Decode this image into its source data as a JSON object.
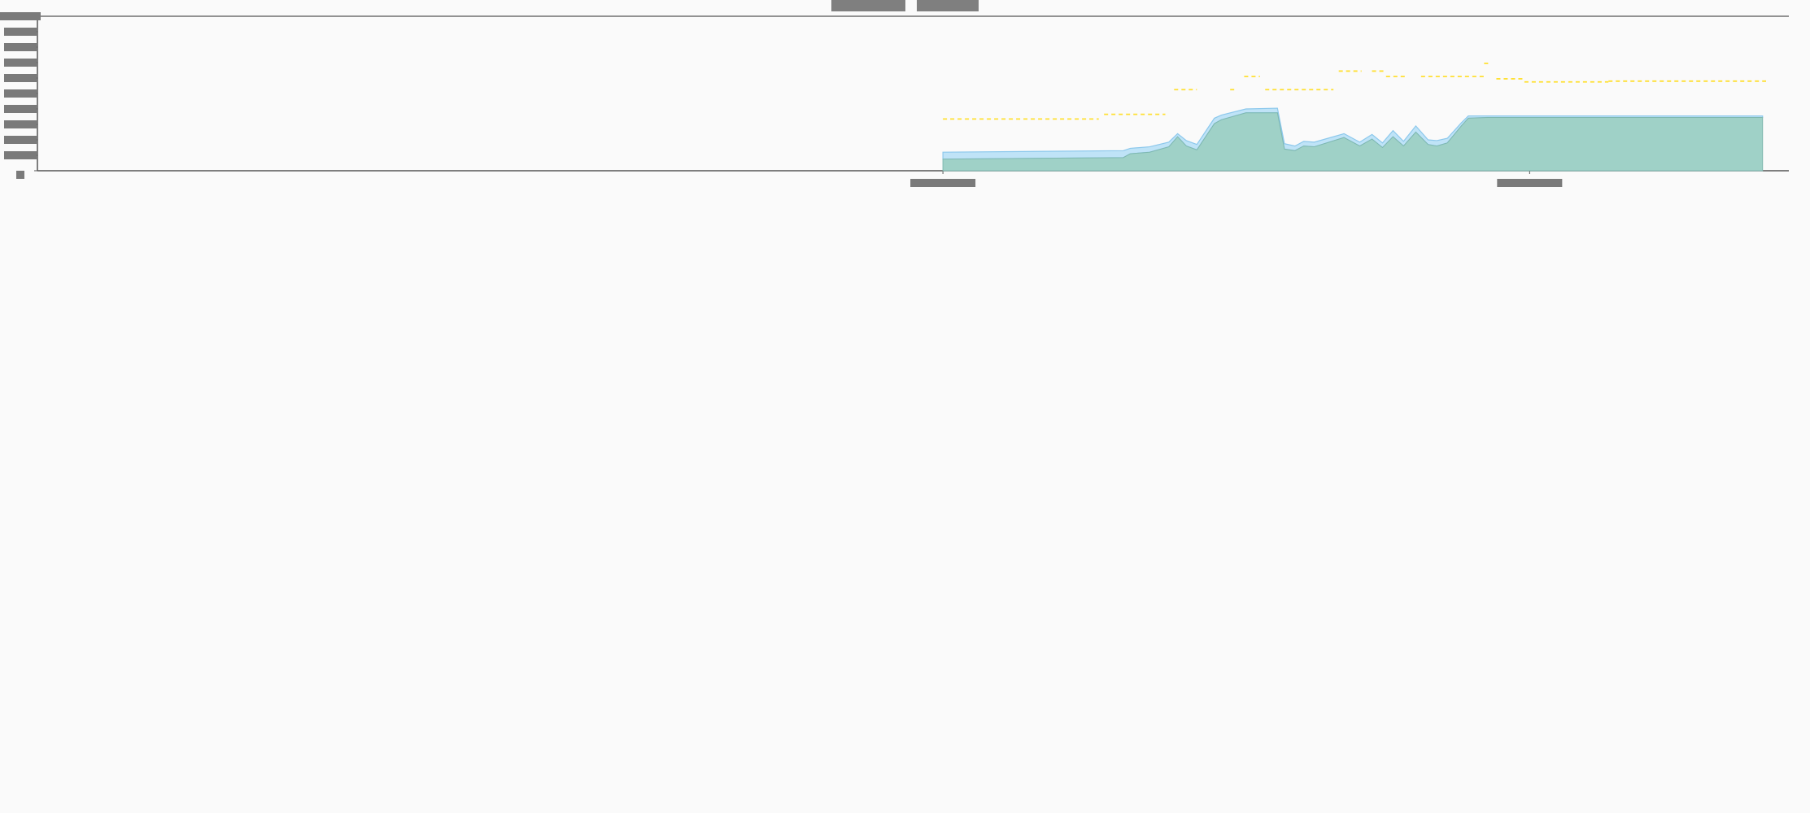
{
  "chart_data": {
    "type": "area",
    "title": "",
    "legend": {
      "placement": "top-center",
      "entries": [
        {
          "color": "#7f7f7f"
        },
        {
          "color": "#7f7f7f"
        }
      ]
    },
    "colors": {
      "background": "#fafafa",
      "axis": "#555555",
      "redacted_label": "#7a7a7a",
      "series_lower_fill": "#9fd1c7",
      "series_lower_stroke": "#7fb8b0",
      "series_upper_fill": "#bfe3f7",
      "series_upper_stroke": "#8cc8ec",
      "reference_line": "#ffe033"
    },
    "x_range": [
      0,
      100
    ],
    "y_range": [
      0,
      10
    ],
    "y_ticks": [
      0,
      1,
      2,
      3,
      4,
      5,
      6,
      7,
      8,
      9,
      10
    ],
    "x_ticks": [
      51.7,
      85.2
    ],
    "grid": false,
    "series": [
      {
        "role": "lower-band",
        "x": [
          51.7,
          62.0,
          62.4,
          63.5,
          64.6,
          65.1,
          65.6,
          66.2,
          67.2,
          67.6,
          69.0,
          70.8,
          71.2,
          71.8,
          72.3,
          72.9,
          74.6,
          75.5,
          76.2,
          76.8,
          77.4,
          78.0,
          78.7,
          79.4,
          79.9,
          80.5,
          81.3,
          81.7,
          82.8,
          83.5,
          98.5
        ],
        "y": [
          0.75,
          0.85,
          1.1,
          1.2,
          1.55,
          2.2,
          1.6,
          1.35,
          3.05,
          3.3,
          3.75,
          3.75,
          1.4,
          1.3,
          1.6,
          1.55,
          2.15,
          1.6,
          2.05,
          1.5,
          2.2,
          1.6,
          2.5,
          1.7,
          1.6,
          1.8,
          2.9,
          3.4,
          3.45,
          3.45,
          3.45
        ]
      },
      {
        "role": "upper-band",
        "x": [
          51.7,
          62.0,
          62.4,
          63.5,
          64.6,
          65.1,
          65.6,
          66.2,
          67.2,
          67.6,
          69.0,
          70.8,
          71.2,
          71.8,
          72.3,
          72.9,
          74.6,
          75.5,
          76.2,
          76.8,
          77.4,
          78.0,
          78.7,
          79.4,
          79.9,
          80.5,
          81.3,
          81.7,
          82.8,
          83.5,
          98.5
        ],
        "y": [
          1.2,
          1.3,
          1.45,
          1.55,
          1.85,
          2.4,
          1.95,
          1.7,
          3.4,
          3.6,
          4.0,
          4.05,
          1.75,
          1.6,
          1.9,
          1.85,
          2.4,
          1.85,
          2.35,
          1.8,
          2.6,
          1.9,
          2.9,
          2.0,
          1.95,
          2.1,
          3.1,
          3.55,
          3.55,
          3.55,
          3.55
        ]
      },
      {
        "role": "reference-dashed",
        "segments": [
          {
            "x": [
              51.7,
              60.6
            ],
            "y": [
              3.35,
              3.35
            ]
          },
          {
            "x": [
              60.9,
              64.4
            ],
            "y": [
              3.65,
              3.65
            ]
          },
          {
            "x": [
              64.9,
              66.2
            ],
            "y": [
              5.25,
              5.25
            ]
          },
          {
            "x": [
              68.1,
              68.5
            ],
            "y": [
              5.25,
              5.25
            ]
          },
          {
            "x": [
              68.9,
              69.8
            ],
            "y": [
              6.1,
              6.1
            ]
          },
          {
            "x": [
              70.1,
              74.0
            ],
            "y": [
              5.25,
              5.25
            ]
          },
          {
            "x": [
              74.3,
              75.6
            ],
            "y": [
              6.45,
              6.45
            ]
          },
          {
            "x": [
              76.2,
              76.9
            ],
            "y": [
              6.45,
              6.45
            ]
          },
          {
            "x": [
              77.0,
              78.2
            ],
            "y": [
              6.1,
              6.1
            ]
          },
          {
            "x": [
              79.0,
              82.6
            ],
            "y": [
              6.1,
              6.1
            ]
          },
          {
            "x": [
              82.6,
              82.9
            ],
            "y": [
              6.95,
              6.95
            ]
          },
          {
            "x": [
              83.3,
              84.9
            ],
            "y": [
              5.95,
              5.95
            ]
          },
          {
            "x": [
              84.9,
              89.7
            ],
            "y": [
              5.75,
              5.75
            ]
          },
          {
            "x": [
              89.7,
              98.7
            ],
            "y": [
              5.8,
              5.8
            ]
          }
        ]
      }
    ]
  }
}
